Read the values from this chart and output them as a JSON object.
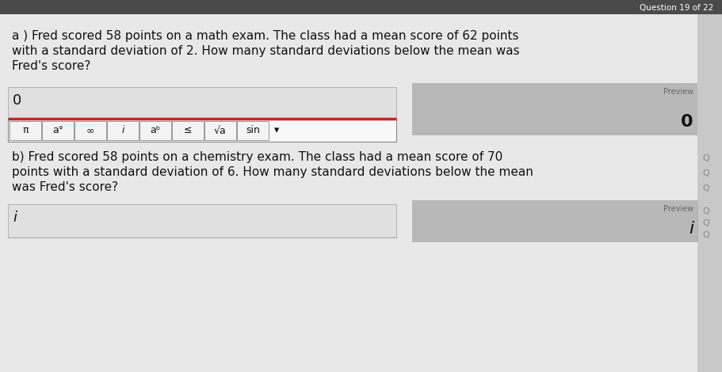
{
  "bg_color": "#c8c8c8",
  "header_color": "#4a4a4a",
  "header_text": "Question 19 of 22",
  "main_bg": "#d4d4d4",
  "content_bg": "#e8e8e8",
  "white_bg": "#f0f0f0",
  "part_a_text_line1": "a ) Fred scored 58 points on a math exam. The class had a mean score of 62 points",
  "part_a_text_line2": "with a standard deviation of 2. How many standard deviations below the mean was",
  "part_a_text_line3": "Fred's score?",
  "part_a_input_char": "0",
  "part_a_preview_label": "Preview",
  "part_a_preview_value": "0",
  "toolbar_buttons": [
    "π",
    "a°",
    "∞",
    "i",
    "aᵇ",
    "≤",
    "√a",
    "sin"
  ],
  "part_b_text_line1": "b) Fred scored 58 points on a chemistry exam. The class had a mean score of 70",
  "part_b_text_line2": "points with a standard deviation of 6. How many standard deviations below the mean",
  "part_b_text_line3": "was Fred's score?",
  "part_b_input_char": "i",
  "part_b_preview_label": "Preview",
  "part_b_preview_value": "i",
  "input_box_color": "#e0e0e0",
  "preview_box_color": "#b8b8b8",
  "toolbar_bg": "#f8f8f8",
  "toolbar_border": "#888888",
  "red_line_color": "#cc2222",
  "text_color": "#111111",
  "small_text_color": "#666666",
  "right_col_color": "#888888"
}
